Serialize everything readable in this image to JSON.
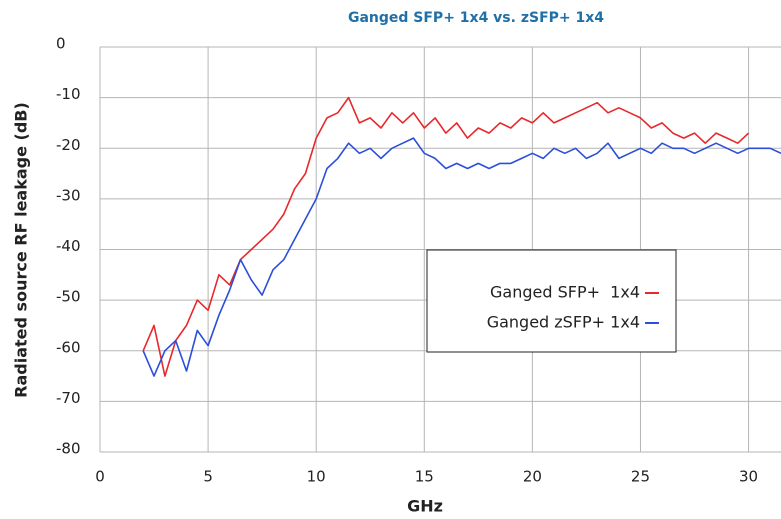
{
  "chart_data": {
    "type": "line",
    "title": "Ganged SFP+  1x4 vs. zSFP+ 1x4",
    "x_label": "GHz",
    "y_label": "Radiated source RF leakage (dB)",
    "x": [
      2,
      2.5,
      3,
      3.5,
      4,
      4.5,
      5,
      5.5,
      6,
      6.5,
      7,
      7.5,
      8,
      8.5,
      9,
      9.5,
      10,
      10.5,
      11,
      11.5,
      12,
      12.5,
      13,
      13.5,
      14,
      14.5,
      15,
      15.5,
      16,
      16.5,
      17,
      17.5,
      18,
      18.5,
      19,
      19.5,
      20,
      20.5,
      21,
      21.5,
      22,
      22.5,
      23,
      23.5,
      24,
      24.5,
      25,
      25.5,
      26,
      26.5,
      27,
      27.5,
      28,
      28.5,
      29,
      29.5,
      30,
      30.5,
      31,
      31.5
    ],
    "series": [
      {
        "name": "Ganged SFP+  1x4",
        "color": "#e8282b",
        "values": [
          -60,
          -55,
          -65,
          -58,
          -55,
          -50,
          -52,
          -45,
          -47,
          -42,
          -40,
          -38,
          -36,
          -33,
          -28,
          -25,
          -18,
          -14,
          -13,
          -10,
          -15,
          -14,
          -16,
          -13,
          -15,
          -13,
          -16,
          -14,
          -17,
          -15,
          -18,
          -16,
          -17,
          -15,
          -16,
          -14,
          -15,
          -13,
          -15,
          -14,
          -13,
          -12,
          -11,
          -13,
          -12,
          -13,
          -14,
          -16,
          -15,
          -17,
          -18,
          -17,
          -19,
          -17,
          -18,
          -19,
          -17,
          null,
          null,
          null
        ]
      },
      {
        "name": "Ganged zSFP+ 1x4",
        "color": "#2b4fd8",
        "values": [
          -60,
          -65,
          -60,
          -58,
          -64,
          -56,
          -59,
          -53,
          -48,
          -42,
          -46,
          -49,
          -44,
          -42,
          -38,
          -34,
          -30,
          -24,
          -22,
          -19,
          -21,
          -20,
          -22,
          -20,
          -19,
          -18,
          -21,
          -22,
          -24,
          -23,
          -24,
          -23,
          -24,
          -23,
          -23,
          -22,
          -21,
          -22,
          -20,
          -21,
          -20,
          -22,
          -21,
          -19,
          -22,
          -21,
          -20,
          -21,
          -19,
          -20,
          -20,
          -21,
          -20,
          -19,
          -20,
          -21,
          -20,
          -20,
          -20,
          -21
        ]
      }
    ],
    "xlim": [
      0,
      31.5
    ],
    "xticks": [
      0,
      5,
      10,
      15,
      20,
      25,
      30
    ],
    "ylim": [
      -80,
      0
    ],
    "yticks": [
      0,
      -10,
      -20,
      -30,
      -40,
      -50,
      -60,
      -70,
      -80
    ],
    "grid": true
  }
}
